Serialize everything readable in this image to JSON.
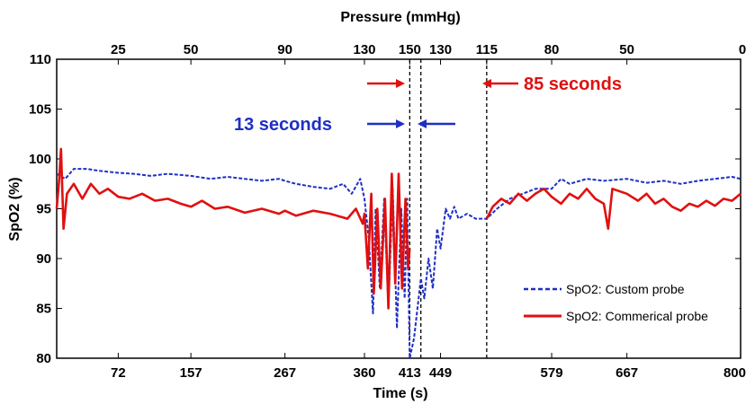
{
  "chart_data": {
    "type": "line",
    "title": "",
    "xlabel": "Time (s)",
    "ylabel": "SpO2 (%)",
    "top_xlabel": "Pressure (mmHg)",
    "xlim": [
      0,
      800
    ],
    "ylim": [
      80,
      110
    ],
    "yticks": [
      80,
      85,
      90,
      95,
      100,
      105,
      110
    ],
    "xticks": [
      {
        "x": 72,
        "label": "72"
      },
      {
        "x": 157,
        "label": "157"
      },
      {
        "x": 267,
        "label": "267"
      },
      {
        "x": 360,
        "label": "360"
      },
      {
        "x": 413,
        "label": "413"
      },
      {
        "x": 449,
        "label": "449"
      },
      {
        "x": 579,
        "label": "579"
      },
      {
        "x": 667,
        "label": "667"
      },
      {
        "x": 800,
        "label": "800"
      }
    ],
    "top_ticks": [
      {
        "x": 72,
        "label": "25"
      },
      {
        "x": 157,
        "label": "50"
      },
      {
        "x": 267,
        "label": "90"
      },
      {
        "x": 360,
        "label": "130"
      },
      {
        "x": 413,
        "label": "150"
      },
      {
        "x": 449,
        "label": "130"
      },
      {
        "x": 503,
        "label": "115"
      },
      {
        "x": 579,
        "label": "80"
      },
      {
        "x": 667,
        "label": "50"
      },
      {
        "x": 800,
        "label": "0"
      }
    ],
    "grid": false,
    "legend_position": "bottom-right",
    "vlines": [
      413,
      426,
      503
    ],
    "series": [
      {
        "name": "SpO2: Custom probe",
        "color": "#1f2fc4",
        "style": "dashed",
        "points": [
          [
            0,
            98.5
          ],
          [
            10,
            98
          ],
          [
            20,
            99
          ],
          [
            35,
            99
          ],
          [
            50,
            98.8
          ],
          [
            72,
            98.6
          ],
          [
            90,
            98.5
          ],
          [
            110,
            98.3
          ],
          [
            130,
            98.5
          ],
          [
            157,
            98.3
          ],
          [
            180,
            98
          ],
          [
            200,
            98.2
          ],
          [
            220,
            98
          ],
          [
            240,
            97.8
          ],
          [
            260,
            98
          ],
          [
            267,
            97.8
          ],
          [
            280,
            97.5
          ],
          [
            300,
            97.2
          ],
          [
            320,
            97
          ],
          [
            335,
            97.5
          ],
          [
            345,
            96.5
          ],
          [
            355,
            98
          ],
          [
            360,
            96
          ],
          [
            365,
            92
          ],
          [
            370,
            84.5
          ],
          [
            373,
            95
          ],
          [
            378,
            87
          ],
          [
            383,
            96
          ],
          [
            388,
            85
          ],
          [
            393,
            97
          ],
          [
            398,
            83
          ],
          [
            403,
            95
          ],
          [
            407,
            86
          ],
          [
            410,
            96
          ],
          [
            413,
            80
          ],
          [
            418,
            82
          ],
          [
            426,
            88
          ],
          [
            430,
            86
          ],
          [
            435,
            90
          ],
          [
            440,
            87
          ],
          [
            445,
            93
          ],
          [
            449,
            91
          ],
          [
            455,
            95
          ],
          [
            460,
            94
          ],
          [
            465,
            95.2
          ],
          [
            470,
            94
          ],
          [
            480,
            94.5
          ],
          [
            490,
            94
          ],
          [
            503,
            94
          ],
          [
            515,
            95
          ],
          [
            530,
            96
          ],
          [
            545,
            96.5
          ],
          [
            560,
            97
          ],
          [
            579,
            97
          ],
          [
            590,
            98
          ],
          [
            600,
            97.5
          ],
          [
            620,
            98
          ],
          [
            640,
            97.8
          ],
          [
            667,
            98
          ],
          [
            690,
            97.6
          ],
          [
            710,
            97.8
          ],
          [
            730,
            97.5
          ],
          [
            750,
            97.8
          ],
          [
            770,
            98
          ],
          [
            790,
            98.2
          ],
          [
            800,
            98
          ]
        ]
      },
      {
        "name": "SpO2: Commerical probe",
        "color": "#e01010",
        "style": "solid",
        "points": [
          [
            0,
            95
          ],
          [
            3,
            98
          ],
          [
            5,
            101
          ],
          [
            8,
            93
          ],
          [
            12,
            96.5
          ],
          [
            20,
            97.5
          ],
          [
            30,
            96
          ],
          [
            40,
            97.5
          ],
          [
            50,
            96.5
          ],
          [
            60,
            97
          ],
          [
            72,
            96.2
          ],
          [
            85,
            96
          ],
          [
            100,
            96.5
          ],
          [
            115,
            95.8
          ],
          [
            130,
            96
          ],
          [
            145,
            95.5
          ],
          [
            157,
            95.2
          ],
          [
            170,
            95.8
          ],
          [
            185,
            95
          ],
          [
            200,
            95.2
          ],
          [
            220,
            94.6
          ],
          [
            240,
            95
          ],
          [
            260,
            94.5
          ],
          [
            267,
            94.8
          ],
          [
            280,
            94.3
          ],
          [
            300,
            94.8
          ],
          [
            320,
            94.5
          ],
          [
            340,
            94
          ],
          [
            350,
            95
          ],
          [
            358,
            93.5
          ],
          [
            360,
            94.5
          ],
          [
            364,
            89
          ],
          [
            368,
            96.5
          ],
          [
            371,
            86.5
          ],
          [
            375,
            95
          ],
          [
            379,
            87
          ],
          [
            384,
            96
          ],
          [
            388,
            85
          ],
          [
            392,
            98.5
          ],
          [
            396,
            87.5
          ],
          [
            400,
            98.5
          ],
          [
            404,
            87
          ],
          [
            408,
            96
          ],
          [
            411,
            89
          ],
          [
            413,
            91
          ],
          [
            503,
            94
          ],
          [
            510,
            95.2
          ],
          [
            520,
            96
          ],
          [
            530,
            95.5
          ],
          [
            540,
            96.5
          ],
          [
            550,
            95.8
          ],
          [
            560,
            96.5
          ],
          [
            570,
            97
          ],
          [
            579,
            96.2
          ],
          [
            590,
            95.5
          ],
          [
            600,
            96.5
          ],
          [
            610,
            96
          ],
          [
            620,
            97
          ],
          [
            630,
            96
          ],
          [
            640,
            95.5
          ],
          [
            645,
            93
          ],
          [
            650,
            97
          ],
          [
            667,
            96.5
          ],
          [
            680,
            95.8
          ],
          [
            690,
            96.5
          ],
          [
            700,
            95.5
          ],
          [
            710,
            96
          ],
          [
            720,
            95.2
          ],
          [
            730,
            94.8
          ],
          [
            740,
            95.5
          ],
          [
            750,
            95.2
          ],
          [
            760,
            95.8
          ],
          [
            770,
            95.3
          ],
          [
            780,
            96
          ],
          [
            790,
            95.8
          ],
          [
            800,
            96.5
          ]
        ]
      }
    ],
    "annotations": [
      {
        "text": "85 seconds",
        "color": "#e01010"
      },
      {
        "text": "13 seconds",
        "color": "#1f2fc4"
      }
    ]
  }
}
